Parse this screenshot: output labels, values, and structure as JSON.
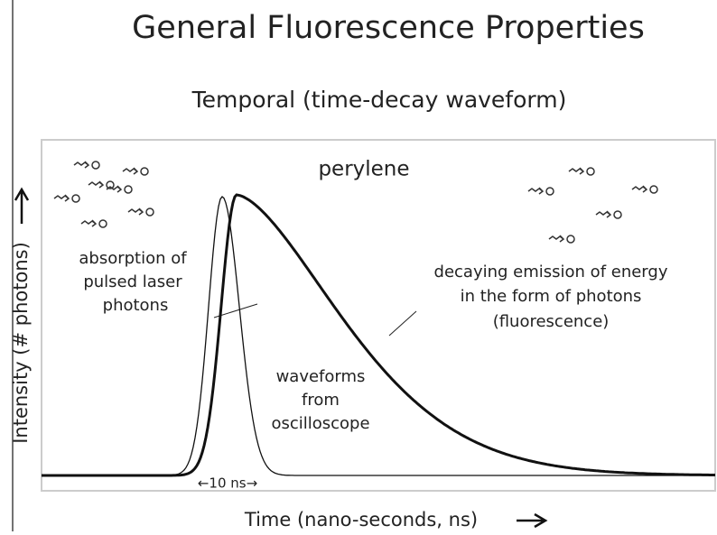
{
  "header": {
    "title": "General Fluorescence Properties",
    "subtitle": "Temporal (time-decay waveform)"
  },
  "diagram": {
    "molecule": "perylene",
    "absorption_label": [
      "absorption of",
      "pulsed laser",
      "photons"
    ],
    "emission_label": [
      "decaying emission of energy",
      "in the form of photons",
      "(fluorescence)"
    ],
    "waveform_label": [
      "waveforms",
      "from",
      "oscilloscope"
    ],
    "width_label": "←10 ns→",
    "y_axis_label": "Intensity (# photons)",
    "x_axis_label": "Time (nano-seconds, ns)"
  }
}
